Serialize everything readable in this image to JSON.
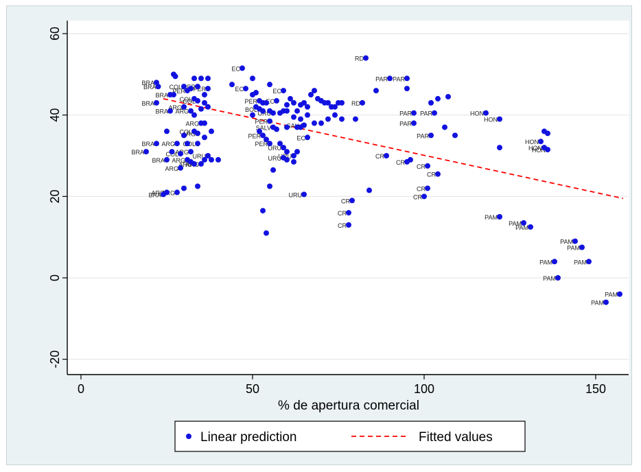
{
  "chart_data": {
    "type": "scatter",
    "title": "",
    "xlabel": "% de apertura comercial",
    "ylabel": "",
    "xlim": [
      0,
      158
    ],
    "ylim": [
      -23,
      64
    ],
    "x_ticks": [
      0,
      50,
      100,
      150
    ],
    "y_ticks": [
      -20,
      0,
      20,
      40,
      60
    ],
    "grid": true,
    "legend_position": "bottom",
    "colors": {
      "points": "#1212e0",
      "fit": "#ff0000",
      "plot_bg": "#ffffff",
      "frame_bg": "#eaf2f3"
    },
    "series": [
      {
        "name": "Linear prediction",
        "kind": "points",
        "points": [
          {
            "x": 22,
            "y": 48,
            "label": "BRA"
          },
          {
            "x": 22.5,
            "y": 47,
            "label": "BRA"
          },
          {
            "x": 26,
            "y": 45,
            "label": "BRA"
          },
          {
            "x": 27,
            "y": 45
          },
          {
            "x": 22,
            "y": 43,
            "label": "BRA"
          },
          {
            "x": 26,
            "y": 41,
            "label": "BRA"
          },
          {
            "x": 25,
            "y": 36
          },
          {
            "x": 22,
            "y": 33,
            "label": "BRA"
          },
          {
            "x": 19,
            "y": 31,
            "label": "BRA"
          },
          {
            "x": 26.5,
            "y": 31
          },
          {
            "x": 25,
            "y": 29,
            "label": "BRA"
          },
          {
            "x": 24,
            "y": 20.5,
            "label": "BRA"
          },
          {
            "x": 27,
            "y": 50
          },
          {
            "x": 27.5,
            "y": 49.5
          },
          {
            "x": 30,
            "y": 47,
            "label": "COL"
          },
          {
            "x": 31,
            "y": 46,
            "label": "PER"
          },
          {
            "x": 32,
            "y": 46.5
          },
          {
            "x": 33,
            "y": 49
          },
          {
            "x": 34,
            "y": 47,
            "label": "PER"
          },
          {
            "x": 35,
            "y": 49
          },
          {
            "x": 37,
            "y": 49
          },
          {
            "x": 37,
            "y": 46.5,
            "label": "PER"
          },
          {
            "x": 36,
            "y": 45
          },
          {
            "x": 33,
            "y": 44,
            "label": "COL"
          },
          {
            "x": 34,
            "y": 43.5,
            "label": "COL"
          },
          {
            "x": 30,
            "y": 42,
            "label": "ARG"
          },
          {
            "x": 32,
            "y": 41,
            "label": "ARG"
          },
          {
            "x": 36,
            "y": 43
          },
          {
            "x": 37,
            "y": 42
          },
          {
            "x": 35,
            "y": 41.5
          },
          {
            "x": 33,
            "y": 40
          },
          {
            "x": 35,
            "y": 38,
            "label": "ARG"
          },
          {
            "x": 36,
            "y": 38
          },
          {
            "x": 33,
            "y": 36,
            "label": "COL"
          },
          {
            "x": 34,
            "y": 35.5,
            "label": "ARG"
          },
          {
            "x": 38,
            "y": 36
          },
          {
            "x": 30,
            "y": 35
          },
          {
            "x": 28,
            "y": 33,
            "label": "ARG"
          },
          {
            "x": 31,
            "y": 33
          },
          {
            "x": 34,
            "y": 33,
            "label": "COL"
          },
          {
            "x": 36,
            "y": 34.5
          },
          {
            "x": 32,
            "y": 31,
            "label": "ARG"
          },
          {
            "x": 29,
            "y": 30.5,
            "label": "COL"
          },
          {
            "x": 31,
            "y": 29,
            "label": "ARG"
          },
          {
            "x": 33,
            "y": 28,
            "label": "ARG"
          },
          {
            "x": 35,
            "y": 28,
            "label": "ARG"
          },
          {
            "x": 36,
            "y": 29
          },
          {
            "x": 37,
            "y": 30,
            "label": "URU"
          },
          {
            "x": 38,
            "y": 29
          },
          {
            "x": 40,
            "y": 29
          },
          {
            "x": 32,
            "y": 28.5
          },
          {
            "x": 29,
            "y": 27,
            "label": "ARG"
          },
          {
            "x": 30,
            "y": 22
          },
          {
            "x": 34,
            "y": 22.5
          },
          {
            "x": 28,
            "y": 21,
            "label": "ARG"
          },
          {
            "x": 25,
            "y": 21,
            "label": "ARG"
          },
          {
            "x": 47,
            "y": 51.5,
            "label": "EC"
          },
          {
            "x": 50,
            "y": 49
          },
          {
            "x": 44,
            "y": 47.5
          },
          {
            "x": 48,
            "y": 46.5,
            "label": "EC"
          },
          {
            "x": 55,
            "y": 47.5
          },
          {
            "x": 59,
            "y": 46,
            "label": "EC"
          },
          {
            "x": 50,
            "y": 45
          },
          {
            "x": 51,
            "y": 45.5
          },
          {
            "x": 52,
            "y": 43.5,
            "label": "PER"
          },
          {
            "x": 53,
            "y": 43
          },
          {
            "x": 54,
            "y": 43
          },
          {
            "x": 57,
            "y": 43.5,
            "label": "EC"
          },
          {
            "x": 60,
            "y": 42.5
          },
          {
            "x": 61,
            "y": 44
          },
          {
            "x": 62,
            "y": 43
          },
          {
            "x": 51,
            "y": 42
          },
          {
            "x": 52,
            "y": 41.5,
            "label": "BOL"
          },
          {
            "x": 53,
            "y": 41
          },
          {
            "x": 50,
            "y": 40
          },
          {
            "x": 55,
            "y": 41
          },
          {
            "x": 56,
            "y": 40.5,
            "label": "URU"
          },
          {
            "x": 58,
            "y": 40.5
          },
          {
            "x": 59,
            "y": 41
          },
          {
            "x": 60,
            "y": 41
          },
          {
            "x": 63,
            "y": 41
          },
          {
            "x": 64,
            "y": 42.5
          },
          {
            "x": 65,
            "y": 43
          },
          {
            "x": 66,
            "y": 42
          },
          {
            "x": 67,
            "y": 45
          },
          {
            "x": 68,
            "y": 46
          },
          {
            "x": 69,
            "y": 44
          },
          {
            "x": 70,
            "y": 43.5
          },
          {
            "x": 71,
            "y": 43
          },
          {
            "x": 72,
            "y": 43
          },
          {
            "x": 73,
            "y": 42
          },
          {
            "x": 74,
            "y": 42
          },
          {
            "x": 75,
            "y": 43
          },
          {
            "x": 76,
            "y": 43
          },
          {
            "x": 62,
            "y": 39.5
          },
          {
            "x": 64,
            "y": 39
          },
          {
            "x": 66,
            "y": 40
          },
          {
            "x": 68,
            "y": 38
          },
          {
            "x": 70,
            "y": 38
          },
          {
            "x": 72,
            "y": 39
          },
          {
            "x": 74,
            "y": 40
          },
          {
            "x": 76,
            "y": 39
          },
          {
            "x": 55,
            "y": 38.5,
            "label": "PER"
          },
          {
            "x": 56,
            "y": 37,
            "label": "SALV"
          },
          {
            "x": 57,
            "y": 36.5
          },
          {
            "x": 60,
            "y": 37
          },
          {
            "x": 63,
            "y": 37
          },
          {
            "x": 64,
            "y": 37
          },
          {
            "x": 65,
            "y": 37.5,
            "label": "SALV"
          },
          {
            "x": 52,
            "y": 36
          },
          {
            "x": 53,
            "y": 35,
            "label": "PER"
          },
          {
            "x": 54,
            "y": 34
          },
          {
            "x": 55,
            "y": 33,
            "label": "PER"
          },
          {
            "x": 58,
            "y": 33
          },
          {
            "x": 59,
            "y": 32,
            "label": "URU"
          },
          {
            "x": 60,
            "y": 31
          },
          {
            "x": 62,
            "y": 30,
            "label": "URU"
          },
          {
            "x": 63,
            "y": 31
          },
          {
            "x": 66,
            "y": 34.5,
            "label": "EC"
          },
          {
            "x": 59,
            "y": 29.5,
            "label": "URU"
          },
          {
            "x": 60,
            "y": 29
          },
          {
            "x": 62,
            "y": 28.5
          },
          {
            "x": 56,
            "y": 26.5
          },
          {
            "x": 55,
            "y": 22.5
          },
          {
            "x": 65,
            "y": 20.5,
            "label": "URU"
          },
          {
            "x": 53,
            "y": 16.5
          },
          {
            "x": 54,
            "y": 11
          },
          {
            "x": 83,
            "y": 54,
            "label": "RD"
          },
          {
            "x": 90,
            "y": 49,
            "label": "PAR"
          },
          {
            "x": 95,
            "y": 49,
            "label": "PAR"
          },
          {
            "x": 95,
            "y": 46.5
          },
          {
            "x": 86,
            "y": 46
          },
          {
            "x": 82,
            "y": 43,
            "label": "RD"
          },
          {
            "x": 80,
            "y": 39
          },
          {
            "x": 97,
            "y": 40.5,
            "label": "PAR"
          },
          {
            "x": 97,
            "y": 38,
            "label": "PAR"
          },
          {
            "x": 102,
            "y": 43
          },
          {
            "x": 104,
            "y": 44
          },
          {
            "x": 107,
            "y": 44.5
          },
          {
            "x": 103,
            "y": 40.5,
            "label": "PAR"
          },
          {
            "x": 106,
            "y": 37
          },
          {
            "x": 102,
            "y": 35,
            "label": "PAR"
          },
          {
            "x": 109,
            "y": 35
          },
          {
            "x": 118,
            "y": 40.5,
            "label": "HON"
          },
          {
            "x": 122,
            "y": 39,
            "label": "HON"
          },
          {
            "x": 122,
            "y": 32
          },
          {
            "x": 135,
            "y": 36
          },
          {
            "x": 136,
            "y": 35.5
          },
          {
            "x": 134,
            "y": 33.5,
            "label": "HON"
          },
          {
            "x": 135,
            "y": 32,
            "label": "HON"
          },
          {
            "x": 136,
            "y": 31.5,
            "label": "HON"
          },
          {
            "x": 89,
            "y": 30,
            "label": "CR"
          },
          {
            "x": 95,
            "y": 28.5,
            "label": "CR"
          },
          {
            "x": 96,
            "y": 29
          },
          {
            "x": 101,
            "y": 27.5,
            "label": "CR"
          },
          {
            "x": 104,
            "y": 25.5,
            "label": "CR"
          },
          {
            "x": 101,
            "y": 22,
            "label": "CR"
          },
          {
            "x": 100,
            "y": 20,
            "label": "CR"
          },
          {
            "x": 84,
            "y": 21.5
          },
          {
            "x": 79,
            "y": 19,
            "label": "CR"
          },
          {
            "x": 78,
            "y": 16,
            "label": "CR"
          },
          {
            "x": 78,
            "y": 13,
            "label": "CR"
          },
          {
            "x": 122,
            "y": 15,
            "label": "PAM"
          },
          {
            "x": 129,
            "y": 13.5,
            "label": "PAM"
          },
          {
            "x": 131,
            "y": 12.5,
            "label": "PAM"
          },
          {
            "x": 144,
            "y": 9,
            "label": "PAM"
          },
          {
            "x": 146,
            "y": 7.5,
            "label": "PAM"
          },
          {
            "x": 138,
            "y": 4,
            "label": "PAM"
          },
          {
            "x": 148,
            "y": 4,
            "label": "PAM"
          },
          {
            "x": 139,
            "y": 0,
            "label": "PAM"
          },
          {
            "x": 153,
            "y": -6,
            "label": "PAM"
          },
          {
            "x": 157,
            "y": -4,
            "label": "PAM"
          }
        ]
      },
      {
        "name": "Fitted values",
        "kind": "line",
        "x": [
          24,
          158
        ],
        "y": [
          44,
          19.5
        ]
      }
    ]
  },
  "legend": {
    "items": [
      "Linear prediction",
      "Fitted values"
    ]
  }
}
